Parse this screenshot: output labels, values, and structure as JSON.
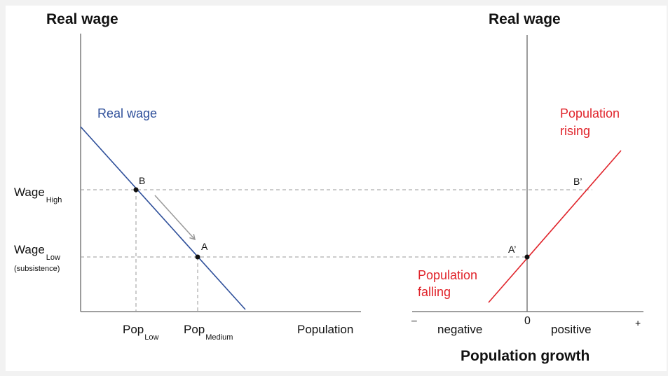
{
  "left_panel": {
    "y_axis_title": "Real wage",
    "x_axis_label": "Population",
    "curve_label": "Real wage",
    "wage_high": {
      "main": "Wage",
      "sub": "High"
    },
    "wage_low": {
      "main": "Wage",
      "sub": "Low",
      "note": "(subsistence)"
    },
    "pop_low": {
      "main": "Pop",
      "sub": "Low"
    },
    "pop_medium": {
      "main": "Pop",
      "sub": "Medium"
    },
    "point_b": "B",
    "point_a": "A"
  },
  "right_panel": {
    "y_axis_title": "Real wage",
    "x_axis_title": "Population growth",
    "minus": "–",
    "plus": "+",
    "negative": "negative",
    "zero": "0",
    "positive": "positive",
    "rising_line1": "Population",
    "rising_line2": "rising",
    "falling_line1": "Population",
    "falling_line2": "falling",
    "point_b_prime": "B’",
    "point_a_prime": "A’"
  },
  "colors": {
    "wage_curve": "#2e4f9a",
    "growth_line": "#e0242b",
    "axis": "#666666",
    "guide": "#999999",
    "arrow": "#999999",
    "background": "#ffffff"
  }
}
